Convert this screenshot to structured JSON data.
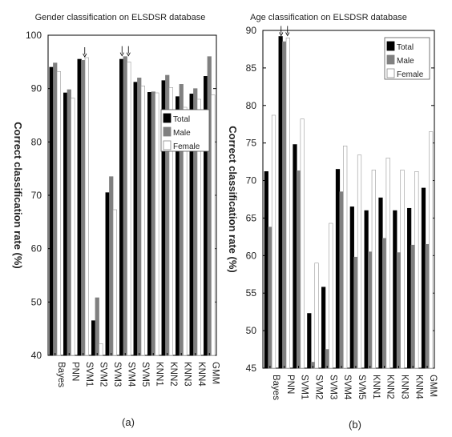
{
  "chart_data": [
    {
      "type": "bar",
      "panel_label": "(a)",
      "title": "Gender classification on ELSDSR database",
      "ylabel": "Correct classification rate (%)",
      "xlabel": "",
      "ylim": [
        40,
        100
      ],
      "yticks": [
        40,
        50,
        60,
        70,
        80,
        90,
        100
      ],
      "categories": [
        "Bayes",
        "PNN",
        "SVM1",
        "SVM2",
        "SVM3",
        "SVM4",
        "SVM5",
        "KNN1",
        "KNN2",
        "KNN3",
        "KNN4",
        "GMM"
      ],
      "series": [
        {
          "name": "Total",
          "color": "#000000",
          "values": [
            94.0,
            89.2,
            95.5,
            46.5,
            70.5,
            95.5,
            91.2,
            89.3,
            91.5,
            88.5,
            89.0,
            92.3
          ]
        },
        {
          "name": "Male",
          "color": "#808080",
          "values": [
            94.8,
            89.8,
            95.3,
            50.8,
            73.5,
            96.0,
            92.0,
            89.4,
            92.5,
            90.8,
            90.0,
            96.0
          ]
        },
        {
          "name": "Female",
          "color": "#ffffff",
          "values": [
            93.2,
            88.2,
            95.8,
            42.2,
            67.3,
            95.0,
            90.5,
            89.2,
            90.2,
            86.5,
            88.0,
            88.8
          ]
        }
      ],
      "legend": {
        "placement": "right-middle",
        "entries": [
          "Total",
          "Male",
          "Female"
        ]
      },
      "annotations": [
        {
          "type": "arrow",
          "category": "SVM1"
        },
        {
          "type": "arrow",
          "category": "SVM4"
        },
        {
          "type": "arrow",
          "category": "SVM4"
        }
      ],
      "grid": false
    },
    {
      "type": "bar",
      "panel_label": "(b)",
      "title": "Age classification on ELSDSR database",
      "ylabel": "Correct classification rate (%)",
      "xlabel": "",
      "ylim": [
        45,
        90
      ],
      "yticks": [
        45,
        50,
        55,
        60,
        65,
        70,
        75,
        80,
        85,
        90
      ],
      "categories": [
        "Bayes",
        "PNN",
        "SVM1",
        "SVM2",
        "SVM3",
        "SVM4",
        "SVM5",
        "KNN1",
        "KNN2",
        "KNN3",
        "KNN4",
        "GMM"
      ],
      "series": [
        {
          "name": "Total",
          "color": "#000000",
          "values": [
            71.2,
            89.2,
            74.8,
            52.3,
            55.8,
            71.5,
            66.5,
            66.0,
            67.7,
            66.0,
            66.3,
            69.0
          ]
        },
        {
          "name": "Male",
          "color": "#808080",
          "values": [
            63.8,
            88.5,
            71.3,
            45.8,
            47.5,
            68.5,
            59.8,
            60.5,
            62.3,
            60.4,
            61.4,
            61.5
          ]
        },
        {
          "name": "Female",
          "color": "#ffffff",
          "values": [
            78.7,
            89.0,
            78.2,
            59.0,
            64.3,
            74.6,
            73.4,
            71.4,
            73.0,
            71.4,
            71.2,
            76.5
          ]
        }
      ],
      "legend": {
        "placement": "top-right",
        "entries": [
          "Total",
          "Male",
          "Female"
        ]
      },
      "annotations": [
        {
          "type": "arrow",
          "category": "PNN"
        },
        {
          "type": "arrow",
          "category": "PNN"
        }
      ],
      "grid": false
    }
  ]
}
